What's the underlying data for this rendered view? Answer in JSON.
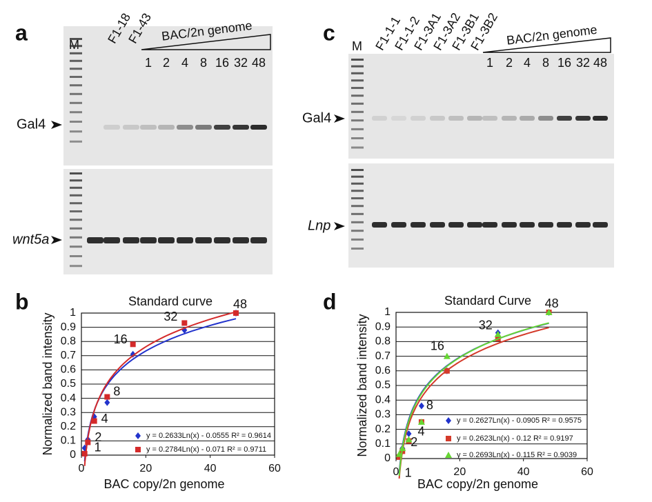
{
  "figure": {
    "panel_letters": [
      "a",
      "c",
      "b",
      "d"
    ],
    "gel_a": {
      "marker": "M",
      "lanes": [
        "F1-18",
        "F1-43"
      ],
      "wedge_label": "BAC/2n genome",
      "copies": [
        "1",
        "2",
        "4",
        "8",
        "16",
        "32",
        "48"
      ],
      "band_top": "Gal4",
      "band_bottom": "wnt5a"
    },
    "gel_c": {
      "marker": "M",
      "lanes": [
        "F1-1-1",
        "F1-1-2",
        "F1-3A1",
        "F1-3A2",
        "F1-3B1",
        "F1-3B2"
      ],
      "wedge_label": "BAC/2n genome",
      "copies": [
        "1",
        "2",
        "4",
        "8",
        "16",
        "32",
        "48"
      ],
      "band_top": "Gal4",
      "band_bottom": "Lnp"
    }
  },
  "chart_data": [
    {
      "type": "scatter",
      "title": "Standard curve",
      "x_label": "BAC copy/2n genome",
      "y_label": "Normalized band intensity",
      "x": [
        1,
        2,
        4,
        8,
        16,
        32,
        48
      ],
      "xlim": [
        0,
        60
      ],
      "xticks": [
        0,
        20,
        40,
        60
      ],
      "ylim": [
        0,
        1
      ],
      "yticks": [
        0,
        0.1,
        0.2,
        0.3,
        0.4,
        0.5,
        0.6,
        0.7,
        0.8,
        0.9,
        1
      ],
      "grid": true,
      "trendline": "log",
      "series": [
        {
          "name": "y = 0.2633Ln(x) - 0.0555 R² = 0.9614",
          "color": "#2233cc",
          "marker": "diamond",
          "values": [
            0.05,
            0.11,
            0.27,
            0.37,
            0.71,
            0.88,
            1.0
          ]
        },
        {
          "name": "y = 0.2784Ln(x) - 0.071  R² = 0.9711",
          "color": "#d42a2a",
          "marker": "square",
          "values": [
            0.01,
            0.09,
            0.24,
            0.41,
            0.78,
            0.93,
            1.0
          ]
        }
      ]
    },
    {
      "type": "scatter",
      "title": "Standard Curve",
      "x_label": "BAC copy/2n genome",
      "y_label": "Normalized band intensity",
      "x": [
        1,
        2,
        4,
        8,
        16,
        32,
        48
      ],
      "xlim": [
        0,
        60
      ],
      "xticks": [
        0,
        20,
        40,
        60
      ],
      "ylim": [
        0,
        1
      ],
      "yticks": [
        0,
        0.1,
        0.2,
        0.3,
        0.4,
        0.5,
        0.6,
        0.7,
        0.8,
        0.9,
        1
      ],
      "grid": true,
      "trendline": "log",
      "series": [
        {
          "name": "y = 0.2627Ln(x) - 0.0905 R² = 0.9575",
          "color": "#2233cc",
          "marker": "diamond",
          "values": [
            0.02,
            0.07,
            0.17,
            0.36,
            0.6,
            0.86,
            1.0
          ]
        },
        {
          "name": "y = 0.2623Ln(x) - 0.12 R² = 0.9197",
          "color": "#d43a2a",
          "marker": "square",
          "values": [
            0.01,
            0.05,
            0.12,
            0.25,
            0.6,
            0.82,
            1.0
          ]
        },
        {
          "name": "y = 0.2693Ln(x) - 0.115  R² = 0.9039",
          "color": "#66d633",
          "marker": "triangle",
          "values": [
            0.03,
            0.07,
            0.13,
            0.25,
            0.7,
            0.85,
            1.0
          ]
        }
      ]
    }
  ]
}
